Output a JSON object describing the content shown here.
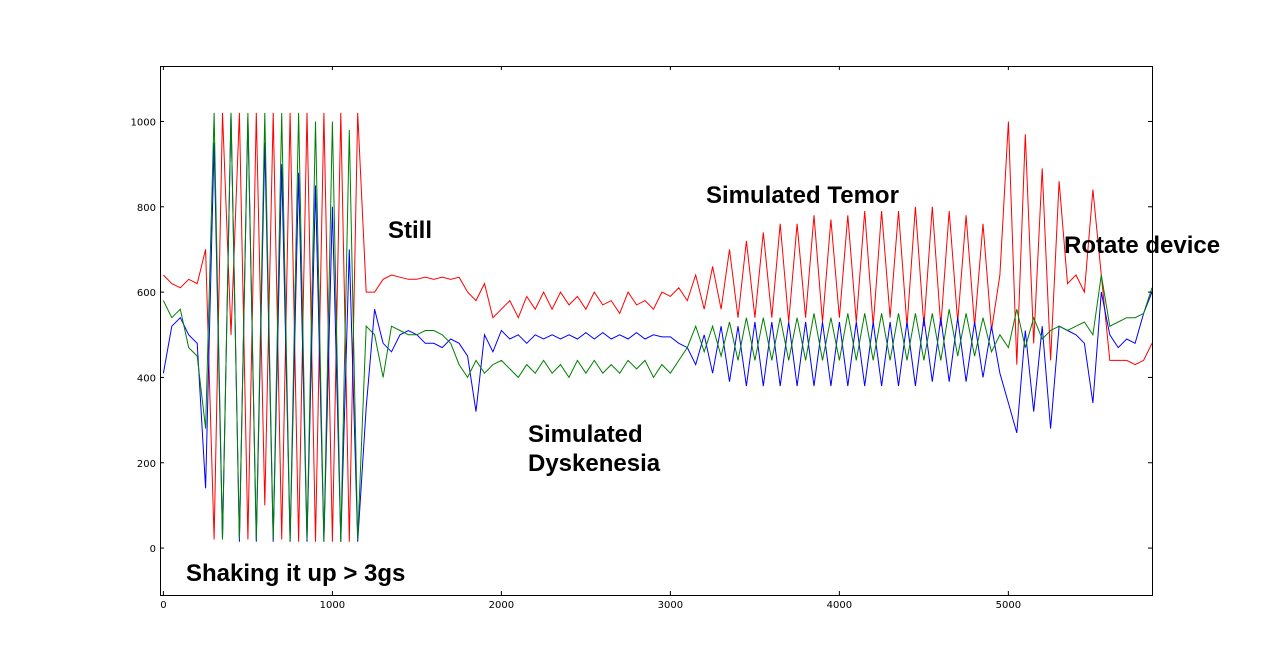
{
  "chart_data": {
    "type": "line",
    "title": "",
    "xlabel": "",
    "ylabel": "",
    "xlim": [
      -20,
      5850
    ],
    "ylim": [
      -110,
      1130
    ],
    "grid": false,
    "xticks": [
      0,
      1000,
      2000,
      3000,
      4000,
      5000
    ],
    "yticks": [
      0,
      200,
      400,
      600,
      800,
      1000
    ],
    "x": [
      0,
      50,
      100,
      150,
      200,
      250,
      300,
      350,
      400,
      450,
      500,
      550,
      600,
      650,
      700,
      750,
      800,
      850,
      900,
      950,
      1000,
      1050,
      1100,
      1150,
      1200,
      1250,
      1300,
      1350,
      1400,
      1450,
      1500,
      1550,
      1600,
      1650,
      1700,
      1750,
      1800,
      1850,
      1900,
      1950,
      2000,
      2050,
      2100,
      2150,
      2200,
      2250,
      2300,
      2350,
      2400,
      2450,
      2500,
      2550,
      2600,
      2650,
      2700,
      2750,
      2800,
      2850,
      2900,
      2950,
      3000,
      3050,
      3100,
      3150,
      3200,
      3250,
      3300,
      3350,
      3400,
      3450,
      3500,
      3550,
      3600,
      3650,
      3700,
      3750,
      3800,
      3850,
      3900,
      3950,
      4000,
      4050,
      4100,
      4150,
      4200,
      4250,
      4300,
      4350,
      4400,
      4450,
      4500,
      4550,
      4600,
      4650,
      4700,
      4750,
      4800,
      4850,
      4900,
      4950,
      5000,
      5050,
      5100,
      5150,
      5200,
      5250,
      5300,
      5350,
      5400,
      5450,
      5500,
      5550,
      5600,
      5650,
      5700,
      5750,
      5800,
      5850
    ],
    "series": [
      {
        "color": "#ff0000",
        "values": [
          640,
          620,
          610,
          630,
          620,
          700,
          20,
          1020,
          500,
          1020,
          20,
          1020,
          100,
          1020,
          20,
          1020,
          15,
          1020,
          15,
          1020,
          15,
          1020,
          15,
          1020,
          600,
          600,
          630,
          640,
          635,
          630,
          630,
          635,
          630,
          635,
          630,
          635,
          600,
          580,
          620,
          540,
          560,
          580,
          540,
          590,
          560,
          600,
          560,
          600,
          570,
          590,
          560,
          600,
          570,
          580,
          550,
          600,
          570,
          580,
          560,
          600,
          590,
          610,
          580,
          640,
          560,
          660,
          560,
          700,
          540,
          720,
          540,
          740,
          540,
          760,
          530,
          760,
          540,
          780,
          530,
          770,
          540,
          780,
          530,
          790,
          520,
          790,
          540,
          790,
          520,
          800,
          520,
          800,
          520,
          790,
          530,
          780,
          520,
          760,
          510,
          640,
          1000,
          430,
          970,
          480,
          890,
          440,
          860,
          620,
          640,
          600,
          840,
          640,
          440,
          440,
          440,
          430,
          440,
          480
        ]
      },
      {
        "color": "#0000ff",
        "values": [
          410,
          520,
          540,
          500,
          480,
          140,
          950,
          20,
          1020,
          15,
          1010,
          15,
          950,
          15,
          900,
          15,
          880,
          15,
          850,
          15,
          800,
          15,
          700,
          15,
          330,
          560,
          480,
          460,
          500,
          510,
          500,
          480,
          480,
          470,
          490,
          480,
          450,
          320,
          500,
          460,
          510,
          490,
          500,
          480,
          500,
          490,
          500,
          490,
          500,
          490,
          505,
          490,
          505,
          490,
          500,
          490,
          505,
          490,
          500,
          495,
          495,
          480,
          470,
          430,
          500,
          410,
          520,
          390,
          520,
          380,
          530,
          380,
          530,
          380,
          530,
          380,
          530,
          380,
          530,
          380,
          530,
          380,
          530,
          380,
          530,
          380,
          530,
          380,
          530,
          380,
          540,
          390,
          540,
          390,
          540,
          390,
          530,
          400,
          520,
          410,
          340,
          270,
          510,
          320,
          520,
          280,
          520,
          510,
          500,
          480,
          340,
          600,
          500,
          470,
          490,
          480,
          550,
          600
        ]
      },
      {
        "color": "#008000",
        "values": [
          580,
          540,
          560,
          470,
          450,
          280,
          1020,
          20,
          1020,
          20,
          1020,
          20,
          1020,
          20,
          1020,
          15,
          1020,
          20,
          1000,
          15,
          1000,
          15,
          980,
          20,
          520,
          500,
          400,
          520,
          510,
          500,
          500,
          510,
          510,
          500,
          480,
          430,
          400,
          440,
          410,
          430,
          440,
          420,
          400,
          430,
          410,
          440,
          410,
          430,
          400,
          440,
          410,
          440,
          410,
          430,
          410,
          440,
          420,
          440,
          400,
          430,
          410,
          440,
          470,
          520,
          460,
          520,
          450,
          530,
          440,
          540,
          440,
          540,
          440,
          540,
          440,
          540,
          440,
          550,
          440,
          540,
          440,
          550,
          440,
          550,
          440,
          550,
          440,
          550,
          440,
          550,
          440,
          550,
          440,
          560,
          450,
          550,
          450,
          540,
          460,
          500,
          470,
          560,
          470,
          540,
          490,
          510,
          520,
          510,
          520,
          530,
          500,
          640,
          520,
          530,
          540,
          540,
          550,
          610
        ]
      }
    ],
    "annotations": [
      {
        "text": "Still"
      },
      {
        "text": "Simulated Temor"
      },
      {
        "text": "Rotate device"
      },
      {
        "text": "Simulated"
      },
      {
        "text": "Dyskenesia"
      },
      {
        "text": "Shaking it up > 3gs"
      }
    ]
  }
}
